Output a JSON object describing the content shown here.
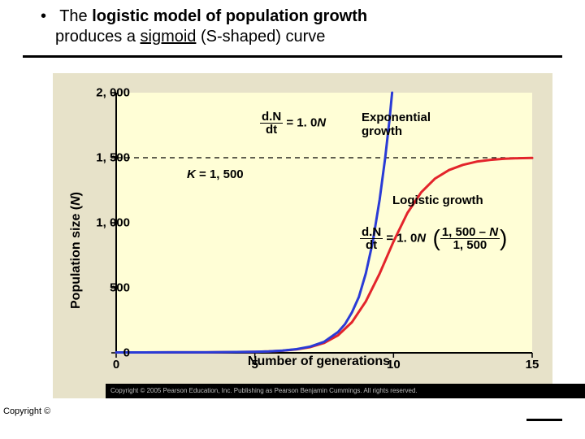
{
  "header": {
    "bullet": "•",
    "text_pre": "The ",
    "bold": "logistic model of population growth",
    "text_post1": " produces a ",
    "underlined": "sigmoid",
    "text_post2": " (S-shaped) curve"
  },
  "chart": {
    "type": "line",
    "background_color": "#e7e2c9",
    "plot_background": "#fffed6",
    "xlim": [
      0,
      15
    ],
    "ylim": [
      0,
      2000
    ],
    "xticks": [
      0,
      5,
      10,
      15
    ],
    "yticks": [
      {
        "v": 0,
        "label": "0"
      },
      {
        "v": 500,
        "label": "500"
      },
      {
        "v": 1000,
        "label": "1, 000"
      },
      {
        "v": 1500,
        "label": "1, 500"
      },
      {
        "v": 2000,
        "label": "2, 000"
      }
    ],
    "xlabel": "Number of generations",
    "ylabel_pre": "Population size (",
    "ylabel_ital": "N",
    "ylabel_post": ")",
    "axis_color": "#000000",
    "series": {
      "exponential": {
        "label": "Exponential growth",
        "color": "#2a3bd6",
        "width": 3,
        "points": [
          [
            0,
            3
          ],
          [
            1,
            3.3
          ],
          [
            2,
            3.6
          ],
          [
            3,
            4.0
          ],
          [
            4,
            5.5
          ],
          [
            5,
            8.1
          ],
          [
            5.5,
            11
          ],
          [
            6,
            17
          ],
          [
            6.5,
            28
          ],
          [
            7,
            48
          ],
          [
            7.5,
            85
          ],
          [
            8,
            160
          ],
          [
            8.25,
            220
          ],
          [
            8.5,
            310
          ],
          [
            8.75,
            430
          ],
          [
            9,
            610
          ],
          [
            9.25,
            850
          ],
          [
            9.5,
            1180
          ],
          [
            9.7,
            1500
          ],
          [
            9.85,
            1780
          ],
          [
            9.95,
            2000
          ]
        ]
      },
      "logistic": {
        "label": "Logistic growth",
        "color": "#e3242b",
        "width": 3,
        "points": [
          [
            0,
            3
          ],
          [
            1,
            3.3
          ],
          [
            2,
            3.6
          ],
          [
            3,
            4.0
          ],
          [
            4,
            5.4
          ],
          [
            5,
            8.0
          ],
          [
            5.5,
            10.7
          ],
          [
            6,
            16.2
          ],
          [
            6.5,
            26
          ],
          [
            7,
            44
          ],
          [
            7.5,
            76
          ],
          [
            8,
            135
          ],
          [
            8.5,
            235
          ],
          [
            9,
            395
          ],
          [
            9.5,
            610
          ],
          [
            10,
            855
          ],
          [
            10.5,
            1075
          ],
          [
            11,
            1235
          ],
          [
            11.5,
            1340
          ],
          [
            12,
            1405
          ],
          [
            12.5,
            1445
          ],
          [
            13,
            1470
          ],
          [
            13.5,
            1484
          ],
          [
            14,
            1492
          ],
          [
            14.5,
            1496
          ],
          [
            15,
            1498
          ]
        ]
      }
    },
    "K_line": {
      "value": 1500,
      "color": "#000000",
      "dash": "6 5",
      "width": 1.2
    },
    "eq1": {
      "num": "d.N",
      "den": "dt",
      "eq": " = 1. 0",
      "ital": "N"
    },
    "k_annot": {
      "pre": "K",
      "post": " = 1, 500"
    },
    "eq2": {
      "num1": "d.N",
      "den1": "dt",
      "eq": " = 1. 0",
      "ital": "N",
      "num2_a": "1, 500 – ",
      "num2_b": "N",
      "den2": "1, 500"
    },
    "label_exp": "Exponential\ngrowth",
    "label_log": "Logistic growth"
  },
  "copyright": "Copyright ©",
  "footer": "Copyright © 2005 Pearson Education, Inc. Publishing as Pearson Benjamin Cummings. All rights reserved."
}
